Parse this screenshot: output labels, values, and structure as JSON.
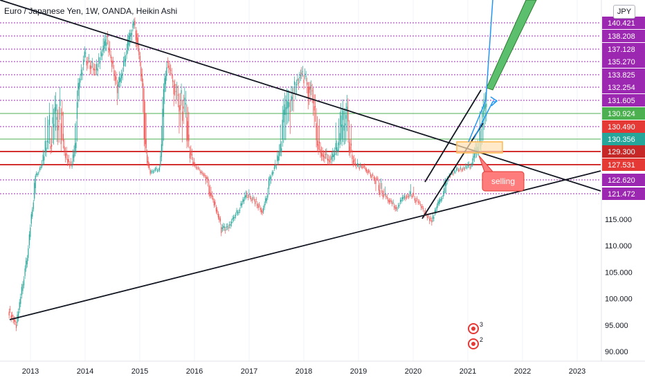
{
  "header": {
    "title": "Euro / Japanese Yen, 1W, OANDA, Heikin Ashi",
    "currency_button": "JPY"
  },
  "annotations": {
    "selling_label": "selling",
    "badge_top": "3",
    "badge_bottom": "2"
  },
  "colors": {
    "up": "#26a69a",
    "down": "#ef5350",
    "trendline": "#131722",
    "hline_dotted": "#9c27b0",
    "red_zone": "#d32f2f",
    "green_line": "#4caf50",
    "projection_arrow": "#2196f3",
    "projection_band": "#5cbf6e",
    "selling_box": "#ff7c7c",
    "orange_box": "#ffb74d"
  },
  "chart_data": {
    "type": "candlestick",
    "title": "Euro / Japanese Yen, 1W, OANDA, Heikin Ashi",
    "x_ticks": [
      "2013",
      "2014",
      "2015",
      "2016",
      "2017",
      "2018",
      "2019",
      "2020",
      "2021",
      "2022",
      "2023"
    ],
    "y_ticks": [
      90,
      95,
      100,
      105,
      110,
      115
    ],
    "price_level_labels": [
      {
        "label": "140.421",
        "value": 140.421,
        "style": "pink"
      },
      {
        "label": "138.208",
        "value": 138.208,
        "style": "pink"
      },
      {
        "label": "137.128",
        "value": 137.128,
        "style": "pink"
      },
      {
        "label": "135.270",
        "value": 135.27,
        "style": "pink"
      },
      {
        "label": "133.825",
        "value": 133.825,
        "style": "pink"
      },
      {
        "label": "132.254",
        "value": 132.254,
        "style": "pink"
      },
      {
        "label": "131.605",
        "value": 131.605,
        "style": "pink"
      },
      {
        "label": "130.924",
        "value": 130.924,
        "style": "green"
      },
      {
        "label": "130.490",
        "value": 130.49,
        "style": "red"
      },
      {
        "label": "130.356",
        "value": 130.356,
        "style": "teal"
      },
      {
        "label": "129.300",
        "value": 129.3,
        "style": "darkred"
      },
      {
        "label": "127.531",
        "value": 127.531,
        "style": "red"
      },
      {
        "label": "122.620",
        "value": 122.62,
        "style": "pink"
      },
      {
        "label": "121.472",
        "value": 121.472,
        "style": "pink"
      }
    ],
    "series_close_path": [
      [
        2012.6,
        98
      ],
      [
        2012.75,
        95
      ],
      [
        2012.95,
        108
      ],
      [
        2013.1,
        124
      ],
      [
        2013.3,
        130
      ],
      [
        2013.55,
        131
      ],
      [
        2013.75,
        127
      ],
      [
        2013.9,
        133
      ],
      [
        2014.0,
        136
      ],
      [
        2014.2,
        134
      ],
      [
        2014.4,
        138
      ],
      [
        2014.6,
        132
      ],
      [
        2014.75,
        136
      ],
      [
        2014.9,
        140.5
      ],
      [
        2015.05,
        133
      ],
      [
        2015.2,
        125
      ],
      [
        2015.35,
        126
      ],
      [
        2015.5,
        135
      ],
      [
        2015.65,
        132
      ],
      [
        2015.85,
        131
      ],
      [
        2016.0,
        127
      ],
      [
        2016.2,
        124
      ],
      [
        2016.35,
        120
      ],
      [
        2016.5,
        113
      ],
      [
        2016.65,
        114
      ],
      [
        2016.8,
        117
      ],
      [
        2016.95,
        121
      ],
      [
        2017.1,
        120
      ],
      [
        2017.25,
        117
      ],
      [
        2017.45,
        126
      ],
      [
        2017.6,
        130
      ],
      [
        2017.8,
        132
      ],
      [
        2017.95,
        134
      ],
      [
        2018.05,
        133
      ],
      [
        2018.2,
        131
      ],
      [
        2018.35,
        129
      ],
      [
        2018.5,
        128
      ],
      [
        2018.65,
        130
      ],
      [
        2018.8,
        131
      ],
      [
        2018.95,
        127
      ],
      [
        2019.1,
        127
      ],
      [
        2019.25,
        124
      ],
      [
        2019.4,
        122
      ],
      [
        2019.55,
        120
      ],
      [
        2019.7,
        118
      ],
      [
        2019.85,
        121
      ],
      [
        2020.0,
        121
      ],
      [
        2020.1,
        119
      ],
      [
        2020.25,
        116
      ],
      [
        2020.35,
        115
      ],
      [
        2020.5,
        120
      ],
      [
        2020.65,
        124
      ],
      [
        2020.8,
        126
      ],
      [
        2020.95,
        126.5
      ],
      [
        2021.05,
        127
      ],
      [
        2021.15,
        129
      ],
      [
        2021.25,
        130.5
      ],
      [
        2021.35,
        131.5
      ]
    ]
  }
}
